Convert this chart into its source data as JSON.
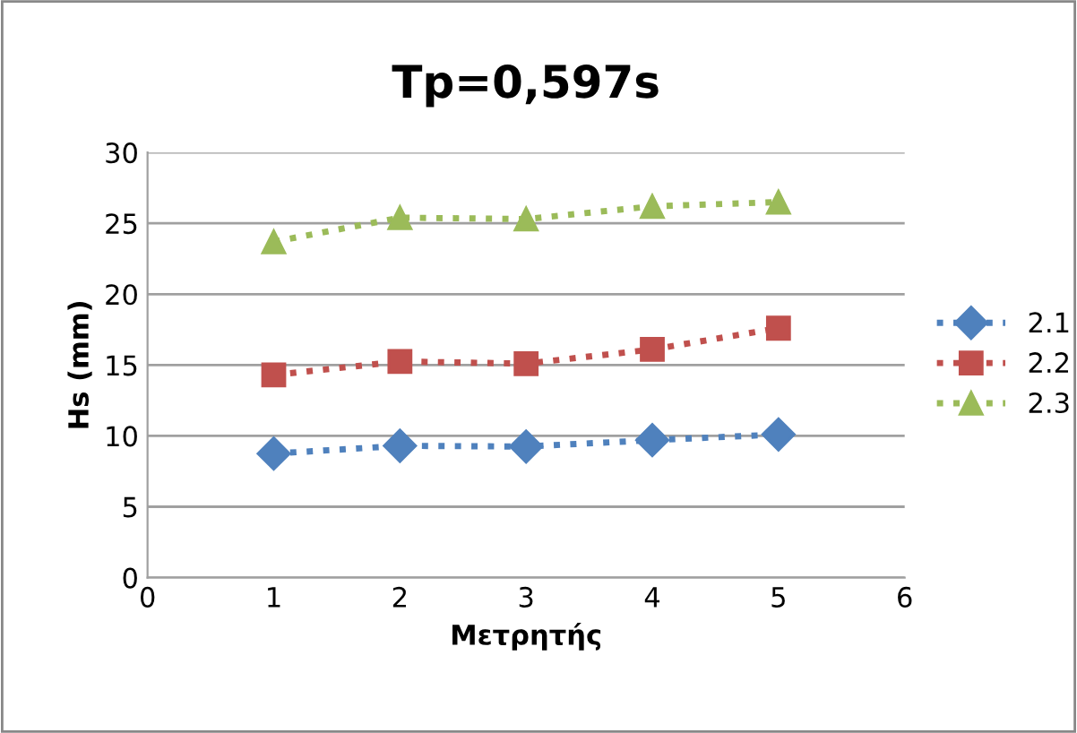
{
  "chart_data": {
    "type": "line",
    "title": "Tp=0,597s",
    "xlabel": "Μετρητής",
    "ylabel": "Hs (mm)",
    "x": [
      1,
      2,
      3,
      4,
      5
    ],
    "series": [
      {
        "name": "2.1",
        "color": "#4f81bd",
        "marker": "diamond",
        "values": [
          8.75,
          9.3,
          9.25,
          9.7,
          10.1
        ]
      },
      {
        "name": "2.2",
        "color": "#c0504d",
        "marker": "square",
        "values": [
          14.3,
          15.25,
          15.1,
          16.1,
          17.6
        ]
      },
      {
        "name": "2.3",
        "color": "#9bbb59",
        "marker": "triangle",
        "values": [
          23.7,
          25.4,
          25.3,
          26.2,
          26.5
        ]
      }
    ],
    "line_style": "dotted",
    "xlim": [
      0,
      6
    ],
    "xticks": [
      0,
      1,
      2,
      3,
      4,
      5,
      6
    ],
    "ylim": [
      0,
      30
    ],
    "yticks": [
      0,
      5,
      10,
      15,
      20,
      25,
      30
    ],
    "grid": "y",
    "legend": "right"
  }
}
